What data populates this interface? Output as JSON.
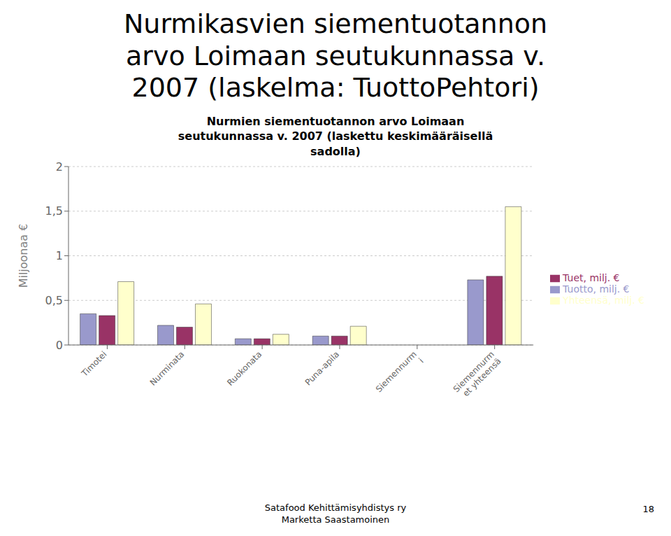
{
  "chart_data": {
    "type": "bar",
    "title": "Nurmikasvien siementuotannon\narvo Loimaan seutukunnassa v.\n2007 (laskelma: TuottoPehtori)",
    "subtitle": "Nurmien siementuotannon arvo Loimaan\nseutukunnassa v. 2007 (laskettu keskimääräisellä\nsadolla)",
    "ylabel": "Miljoonaa €",
    "categories": [
      "Timotei",
      "Nurminata",
      "Ruokonata",
      "Puna-apila",
      "Siemennurm\ni",
      "Siemennurm\net yhteensä"
    ],
    "series": [
      {
        "name": "Tuotto, milj. €",
        "color": "#9999CC",
        "values": [
          0.35,
          0.22,
          0.07,
          0.1,
          0.0,
          0.73
        ]
      },
      {
        "name": "Tuet, milj. €",
        "color": "#993366",
        "values": [
          0.33,
          0.2,
          0.07,
          0.1,
          0.0,
          0.77
        ]
      },
      {
        "name": "Yhteensä, milj. €",
        "color": "#FFFFCC",
        "values": [
          0.71,
          0.46,
          0.12,
          0.21,
          0.0,
          1.55
        ]
      }
    ],
    "ylim": [
      0,
      2.0
    ],
    "yticks": [
      0,
      {
        "value": 0.5,
        "label": "0,5"
      },
      1,
      {
        "value": 1.5,
        "label": "1,5"
      },
      2
    ],
    "grid": true,
    "legend": "right",
    "annotations": [
      "Satafood Kehittämisyhdistys ry",
      "Marketta Saastamoinen",
      "18"
    ]
  }
}
